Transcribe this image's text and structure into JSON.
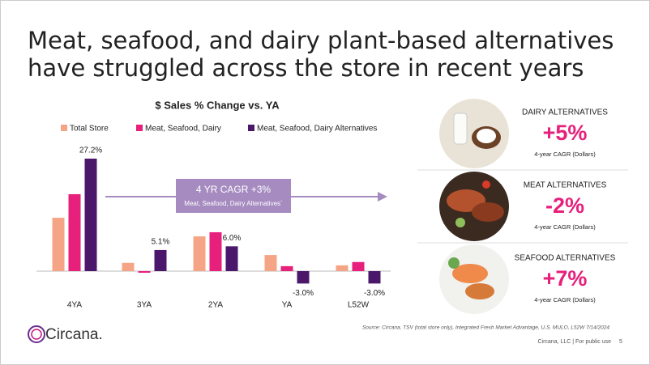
{
  "title": [
    "Meat, seafood, and dairy plant-based alternatives",
    "have struggled across the store in recent years"
  ],
  "chart_data": {
    "type": "bar",
    "title": "$ Sales % Change vs. YA",
    "categories": [
      "4YA",
      "3YA",
      "2YA",
      "YA",
      "L52W"
    ],
    "series": [
      {
        "name": "Total Store",
        "color": "#f5a585",
        "values": [
          12.9,
          2.0,
          8.4,
          3.9,
          1.4
        ]
      },
      {
        "name": "Meat, Seafood, Dairy",
        "color": "#e6207b",
        "values": [
          18.6,
          -0.4,
          9.4,
          1.2,
          2.2
        ]
      },
      {
        "name": "Meat, Seafood, Dairy Alternatives",
        "color": "#4b176b",
        "values": [
          27.2,
          5.1,
          6.0,
          -3.0,
          -3.0
        ],
        "value_labels": [
          "27.2%",
          "5.1%",
          "6.0%",
          "-3.0%",
          "-3.0%"
        ]
      }
    ],
    "annotation": {
      "title": "4 YR CAGR +3%",
      "subtitle": "Meat, Seafood, Dairy Alternatives`"
    }
  },
  "panels": [
    {
      "label": "DAIRY ALTERNATIVES",
      "value": "+5%",
      "caption": "4-year CAGR (Dollars)"
    },
    {
      "label": "MEAT ALTERNATIVES",
      "value": "-2%",
      "caption": "4-year CAGR (Dollars)"
    },
    {
      "label": "SEAFOOD ALTERNATIVES",
      "value": "+7%",
      "caption": "4-year CAGR (Dollars)"
    }
  ],
  "source": "Source: Circana, TSV (total store only), Integrated Fresh Market Advantage, U.S. MULO, L52W 7/14/2024",
  "footer": {
    "text": "Circana, LLC |  For public use",
    "page": "5"
  },
  "logo": "Circana."
}
